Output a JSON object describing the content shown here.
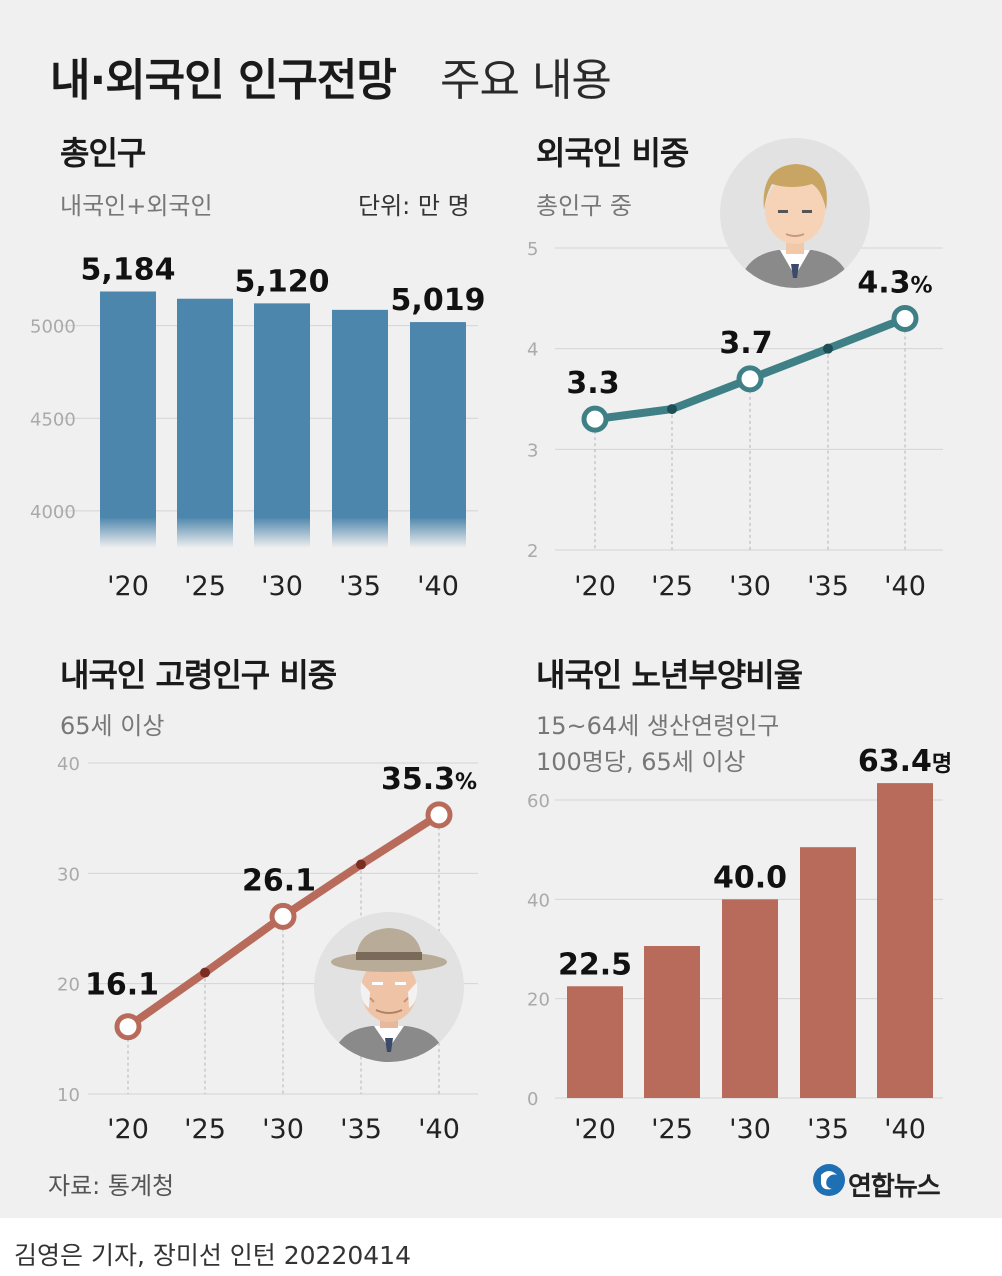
{
  "header": {
    "title_bold": "내·외국인 인구전망",
    "title_light": "주요 내용"
  },
  "panels": {
    "total_population": {
      "title": "총인구",
      "subtitle": "내국인+외국인",
      "unit": "단위: 만 명"
    },
    "foreigner_share": {
      "title": "외국인 비중",
      "subtitle": "총인구 중"
    },
    "elderly_share": {
      "title": "내국인 고령인구 비중",
      "subtitle": "65세 이상"
    },
    "dependency_ratio": {
      "title": "내국인 노년부양비율",
      "subtitle_line1": "15~64세 생산연령인구",
      "subtitle_line2": "100명당, 65세 이상"
    }
  },
  "footer": {
    "source": "자료: 통계청",
    "logo_text": "연합뉴스",
    "credit": "김영은 기자, 장미선 인턴  20220414"
  },
  "colors": {
    "blue": "#4d86ac",
    "teal": "#3f7f86",
    "brown": "#b86b5a",
    "background": "#f0f0f0"
  },
  "chart_data": [
    {
      "id": "total_population",
      "type": "bar",
      "categories": [
        "'20",
        "'25",
        "'30",
        "'35",
        "'40"
      ],
      "values": [
        5184,
        5145,
        5120,
        5085,
        5019
      ],
      "labels": [
        "5,184",
        null,
        "5,120",
        null,
        "5,019"
      ],
      "label_unit": "",
      "yticks": [
        4000,
        4500,
        5000
      ],
      "ylim": [
        3800,
        5300
      ],
      "truncated_axis": true
    },
    {
      "id": "foreigner_share",
      "type": "line",
      "categories": [
        "'20",
        "'25",
        "'30",
        "'35",
        "'40"
      ],
      "values": [
        3.3,
        3.4,
        3.7,
        4.0,
        4.3
      ],
      "labels": [
        "3.3",
        null,
        "3.7",
        null,
        "4.3"
      ],
      "label_unit": "%",
      "yticks": [
        2,
        3,
        4,
        5
      ],
      "ylim": [
        2,
        5
      ]
    },
    {
      "id": "elderly_share",
      "type": "line",
      "categories": [
        "'20",
        "'25",
        "'30",
        "'35",
        "'40"
      ],
      "values": [
        16.1,
        21.0,
        26.1,
        30.8,
        35.3
      ],
      "labels": [
        "16.1",
        null,
        "26.1",
        null,
        "35.3"
      ],
      "label_unit": "%",
      "yticks": [
        10,
        20,
        30,
        40
      ],
      "ylim": [
        10,
        40
      ]
    },
    {
      "id": "dependency_ratio",
      "type": "bar",
      "categories": [
        "'20",
        "'25",
        "'30",
        "'35",
        "'40"
      ],
      "values": [
        22.5,
        30.6,
        40.0,
        50.5,
        63.4
      ],
      "labels": [
        "22.5",
        null,
        "40.0",
        null,
        "63.4"
      ],
      "label_unit": "명",
      "yticks": [
        0,
        20,
        40,
        60
      ],
      "ylim": [
        0,
        60
      ]
    }
  ]
}
